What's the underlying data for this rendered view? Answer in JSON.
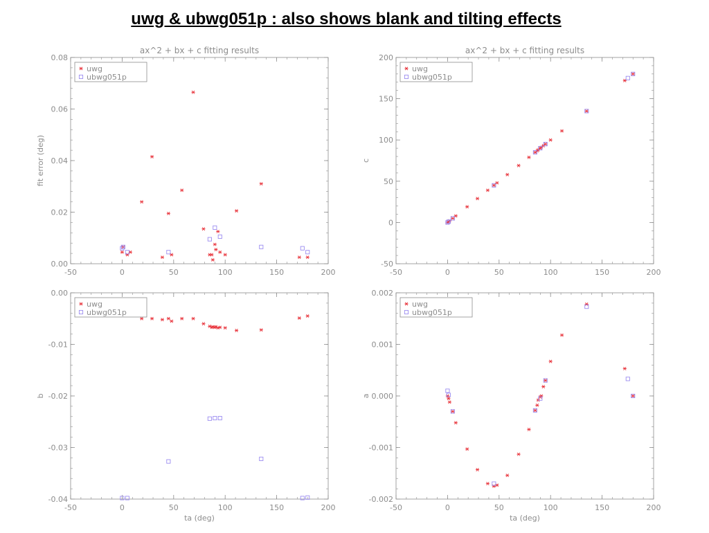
{
  "title": "uwg & ubwg051p : also shows blank and tilting effects",
  "colors": {
    "axis": "#8c8c8c",
    "text": "#8c8c8c",
    "uwg": "#e8333b",
    "ubwg051p": "#9b8cf0"
  },
  "chart_data": [
    {
      "id": "fit_error",
      "type": "scatter",
      "title": "ax^2 + bx + c fitting results",
      "xlabel": "",
      "ylabel": "fit error (deg)",
      "xlim": [
        -50,
        200
      ],
      "ylim": [
        0,
        0.08
      ],
      "xticks": [
        "-50",
        "0",
        "50",
        "100",
        "150",
        "200"
      ],
      "yticks": [
        "0.00",
        "0.02",
        "0.04",
        "0.06",
        "0.08"
      ],
      "legend": [
        "uwg",
        "ubwg051p"
      ],
      "series": [
        {
          "name": "uwg",
          "marker": "star",
          "color": "#e8333b",
          "x": [
            0,
            1,
            5,
            8,
            19,
            29,
            39,
            45,
            48,
            58,
            69,
            79,
            85,
            87,
            88,
            90,
            91,
            93,
            95,
            100,
            111,
            135,
            172,
            180
          ],
          "y": [
            0.0045,
            0.0065,
            0.0035,
            0.0045,
            0.024,
            0.0415,
            0.0025,
            0.0195,
            0.0035,
            0.0285,
            0.0665,
            0.0135,
            0.0035,
            0.0035,
            0.0015,
            0.0075,
            0.0055,
            0.0125,
            0.0045,
            0.0035,
            0.0205,
            0.031,
            0.0025,
            0.0025
          ]
        },
        {
          "name": "ubwg051p",
          "marker": "square",
          "color": "#9b8cf0",
          "x": [
            0,
            1,
            5,
            45,
            85,
            90,
            95,
            135,
            175,
            180
          ],
          "y": [
            0.006,
            0.0065,
            0.0045,
            0.0045,
            0.0095,
            0.014,
            0.0105,
            0.0065,
            0.006,
            0.0045
          ]
        }
      ]
    },
    {
      "id": "c",
      "type": "scatter",
      "title": "ax^2 + bx + c fitting results",
      "xlabel": "",
      "ylabel": "c",
      "xlim": [
        -50,
        200
      ],
      "ylim": [
        -50,
        200
      ],
      "xticks": [
        "-50",
        "0",
        "50",
        "100",
        "150",
        "200"
      ],
      "yticks": [
        "-50",
        "0",
        "50",
        "100",
        "150",
        "200"
      ],
      "legend": [
        "uwg",
        "ubwg051p"
      ],
      "series": [
        {
          "name": "uwg",
          "marker": "star",
          "color": "#e8333b",
          "x": [
            0,
            1,
            2,
            5,
            8,
            19,
            29,
            39,
            45,
            48,
            58,
            69,
            79,
            85,
            87,
            88,
            90,
            91,
            93,
            95,
            100,
            111,
            135,
            172,
            180
          ],
          "y": [
            0,
            1,
            2,
            5,
            8,
            19,
            29,
            39,
            45,
            48,
            58,
            69,
            79,
            85,
            87,
            88,
            90,
            91,
            93,
            95,
            100,
            111,
            135,
            172,
            180
          ]
        },
        {
          "name": "ubwg051p",
          "marker": "square",
          "color": "#9b8cf0",
          "x": [
            0,
            1,
            5,
            45,
            85,
            90,
            95,
            135,
            175,
            180
          ],
          "y": [
            0,
            1,
            5,
            45,
            85,
            90,
            95,
            135,
            175,
            180
          ]
        }
      ]
    },
    {
      "id": "b",
      "type": "scatter",
      "title": "",
      "xlabel": "ta (deg)",
      "ylabel": "b",
      "xlim": [
        -50,
        200
      ],
      "ylim": [
        -0.04,
        0
      ],
      "xticks": [
        "-50",
        "0",
        "50",
        "100",
        "150",
        "200"
      ],
      "yticks": [
        "-0.04",
        "-0.03",
        "-0.02",
        "-0.01",
        "0.00"
      ],
      "legend": [
        "uwg",
        "ubwg051p"
      ],
      "series": [
        {
          "name": "uwg",
          "marker": "star",
          "color": "#e8333b",
          "x": [
            0,
            1,
            3,
            5,
            8,
            19,
            29,
            39,
            45,
            48,
            58,
            69,
            79,
            85,
            87,
            88,
            90,
            91,
            93,
            95,
            100,
            111,
            135,
            172,
            180
          ],
          "y": [
            -0.0038,
            -0.004,
            -0.0042,
            -0.0038,
            -0.0042,
            -0.005,
            -0.005,
            -0.0052,
            -0.005,
            -0.0055,
            -0.005,
            -0.005,
            -0.006,
            -0.0065,
            -0.0067,
            -0.0066,
            -0.0067,
            -0.0066,
            -0.0068,
            -0.0067,
            -0.0068,
            -0.0073,
            -0.0072,
            -0.0049,
            -0.0045
          ]
        },
        {
          "name": "ubwg051p",
          "marker": "square",
          "color": "#9b8cf0",
          "x": [
            0,
            5,
            45,
            85,
            90,
            95,
            135,
            175,
            180
          ],
          "y": [
            -0.0398,
            -0.0398,
            -0.0327,
            -0.0244,
            -0.0243,
            -0.0243,
            -0.0322,
            -0.0398,
            -0.0397
          ]
        }
      ]
    },
    {
      "id": "a",
      "type": "scatter",
      "title": "",
      "xlabel": "ta (deg)",
      "ylabel": "a",
      "xlim": [
        -50,
        200
      ],
      "ylim": [
        -0.002,
        0.002
      ],
      "xticks": [
        "-50",
        "0",
        "50",
        "100",
        "150",
        "200"
      ],
      "yticks": [
        "-0.002",
        "-0.001",
        "0.000",
        "0.001",
        "0.002"
      ],
      "legend": [
        "uwg",
        "ubwg051p"
      ],
      "series": [
        {
          "name": "uwg",
          "marker": "star",
          "color": "#e8333b",
          "x": [
            0,
            1,
            2,
            5,
            8,
            19,
            29,
            39,
            45,
            48,
            58,
            69,
            79,
            85,
            87,
            88,
            90,
            91,
            93,
            95,
            100,
            111,
            135,
            172,
            180
          ],
          "y": [
            0.0,
            -5e-05,
            -0.00012,
            -0.0003,
            -0.00052,
            -0.00103,
            -0.00143,
            -0.0017,
            -0.00175,
            -0.00173,
            -0.00154,
            -0.00113,
            -0.00065,
            -0.00028,
            -0.00018,
            -8e-05,
            -2e-05,
            0.0,
            0.00018,
            0.0003,
            0.00067,
            0.00118,
            0.00178,
            0.00053,
            0.0
          ]
        },
        {
          "name": "ubwg051p",
          "marker": "square",
          "color": "#9b8cf0",
          "x": [
            0,
            1,
            5,
            45,
            85,
            90,
            95,
            135,
            175,
            180
          ],
          "y": [
            0.0001,
            2e-05,
            -0.0003,
            -0.0017,
            -0.00028,
            -5e-05,
            0.0003,
            0.00173,
            0.00033,
            0.0
          ]
        }
      ]
    }
  ]
}
